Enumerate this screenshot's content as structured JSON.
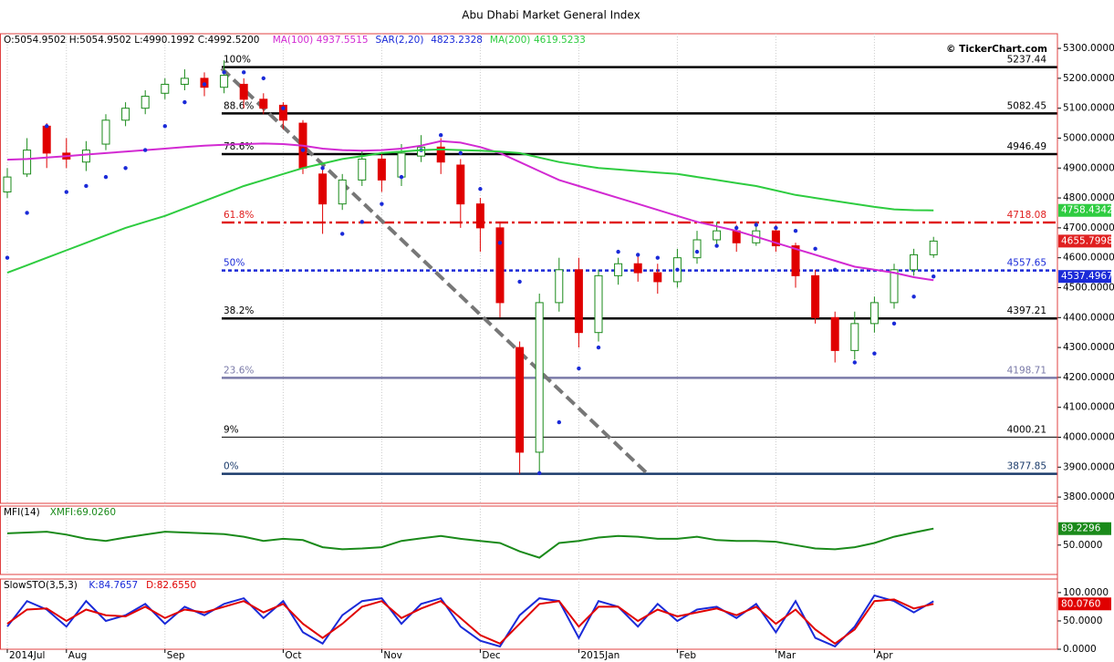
{
  "title": "Abu Dhabi Market General Index",
  "copyright": "© TickerChart.com",
  "chart_data": [
    {
      "type": "candlestick",
      "header": "O:5054.9502 H:5054.9502 L:4990.1992 C:4992.5200",
      "categories": [
        "2014Jul",
        null,
        null,
        "Aug",
        null,
        null,
        null,
        null,
        "Sep",
        null,
        null,
        null,
        null,
        null,
        "Oct",
        null,
        null,
        null,
        null,
        "Nov",
        null,
        null,
        null,
        null,
        "Dec",
        null,
        null,
        null,
        null,
        "2015Jan",
        null,
        null,
        null,
        null,
        "Feb",
        null,
        null,
        null,
        null,
        "Mar",
        null,
        null,
        null,
        null,
        "Apr",
        null,
        null,
        null
      ],
      "open": [
        4820,
        4880,
        5040,
        4950,
        4920,
        4980,
        5060,
        5100,
        5150,
        5180,
        5200,
        5170,
        5180,
        5130,
        5110,
        5050,
        4880,
        4780,
        4860,
        4930,
        4870,
        4940,
        4970,
        4910,
        4780,
        4700,
        4300,
        3950,
        4450,
        4560,
        4350,
        4540,
        4580,
        4550,
        4520,
        4600,
        4660,
        4690,
        4650,
        4690,
        4640,
        4540,
        4400,
        4290,
        4380,
        4450,
        4560,
        4610
      ],
      "high": [
        4900,
        5000,
        5050,
        5000,
        4990,
        5080,
        5120,
        5160,
        5200,
        5230,
        5220,
        5260,
        5200,
        5150,
        5120,
        5060,
        4900,
        4880,
        4960,
        4950,
        4980,
        5010,
        5000,
        4930,
        4800,
        4720,
        4320,
        4480,
        4600,
        4600,
        4560,
        4600,
        4610,
        4580,
        4630,
        4690,
        4720,
        4710,
        4720,
        4710,
        4650,
        4560,
        4420,
        4420,
        4470,
        4580,
        4630,
        4670
      ],
      "low": [
        4800,
        4870,
        4900,
        4900,
        4890,
        4960,
        5040,
        5080,
        5130,
        5160,
        5140,
        5150,
        5100,
        5080,
        5030,
        4880,
        4680,
        4760,
        4840,
        4820,
        4840,
        4920,
        4880,
        4700,
        4620,
        4400,
        3877,
        3880,
        4420,
        4300,
        4320,
        4510,
        4520,
        4480,
        4500,
        4580,
        4640,
        4620,
        4640,
        4620,
        4500,
        4380,
        4250,
        4260,
        4350,
        4430,
        4540,
        4600
      ],
      "close": [
        4870,
        4960,
        4950,
        4930,
        4960,
        5060,
        5100,
        5140,
        5180,
        5200,
        5170,
        5210,
        5130,
        5100,
        5060,
        4900,
        4780,
        4860,
        4930,
        4860,
        4950,
        4970,
        4920,
        4780,
        4700,
        4450,
        3950,
        4450,
        4560,
        4350,
        4540,
        4580,
        4550,
        4520,
        4600,
        4660,
        4690,
        4650,
        4690,
        4640,
        4540,
        4400,
        4290,
        4380,
        4450,
        4560,
        4610,
        4655.7998
      ],
      "up_color": "#1a8a1a",
      "down_color": "#e00000",
      "close_tag_color": "#e02020",
      "series": [
        {
          "name": "MA(100)",
          "legend_value": "4937.5515",
          "color": "#d22ad2",
          "style": "line",
          "values": [
            4928,
            4930,
            4935,
            4940,
            4945,
            4950,
            4955,
            4960,
            4965,
            4970,
            4975,
            4978,
            4980,
            4982,
            4980,
            4975,
            4965,
            4960,
            4958,
            4960,
            4965,
            4975,
            4990,
            4985,
            4970,
            4950,
            4920,
            4890,
            4860,
            4840,
            4820,
            4800,
            4780,
            4760,
            4740,
            4720,
            4705,
            4690,
            4670,
            4650,
            4630,
            4610,
            4590,
            4570,
            4560,
            4550,
            4535,
            4525
          ]
        },
        {
          "name": "SAR(2,20)",
          "legend_value": "4823.2328",
          "color": "#1a2ad8",
          "style": "dots",
          "tag": true,
          "values": [
            4600,
            4750,
            5040,
            4820,
            4840,
            4870,
            4900,
            4960,
            5040,
            5120,
            5180,
            5220,
            5220,
            5200,
            5100,
            4960,
            4900,
            4680,
            4720,
            4780,
            4870,
            4960,
            5010,
            4950,
            4830,
            4650,
            4520,
            3880,
            4050,
            4230,
            4300,
            4620,
            4610,
            4600,
            4560,
            4620,
            4640,
            4700,
            4710,
            4700,
            4690,
            4630,
            4560,
            4250,
            4280,
            4380,
            4470,
            4537.4967
          ]
        },
        {
          "name": "MA(200)",
          "legend_value": "4619.5233",
          "color": "#2ecc40",
          "style": "line",
          "tag": true,
          "values": [
            4550,
            4575,
            4600,
            4625,
            4650,
            4675,
            4700,
            4720,
            4740,
            4765,
            4790,
            4815,
            4840,
            4860,
            4880,
            4900,
            4915,
            4930,
            4940,
            4950,
            4955,
            4960,
            4962,
            4960,
            4958,
            4955,
            4950,
            4935,
            4920,
            4910,
            4900,
            4895,
            4890,
            4885,
            4880,
            4870,
            4860,
            4850,
            4840,
            4825,
            4810,
            4800,
            4790,
            4780,
            4770,
            4762,
            4759,
            4758.4342
          ]
        }
      ],
      "fib": [
        {
          "label": "100%",
          "value": 5237.44,
          "color": "#000000",
          "style": "solid"
        },
        {
          "label": "88.6%",
          "value": 5082.45,
          "color": "#000000",
          "style": "solid"
        },
        {
          "label": "78.6%",
          "value": 4946.49,
          "color": "#000000",
          "style": "solid"
        },
        {
          "label": "61.8%",
          "value": 4718.08,
          "color": "#e02020",
          "style": "dashdot"
        },
        {
          "label": "50%",
          "value": 4557.65,
          "color": "#1a2ad8",
          "style": "dotted"
        },
        {
          "label": "38.2%",
          "value": 4397.21,
          "color": "#000000",
          "style": "solid"
        },
        {
          "label": "23.6%",
          "value": 4198.71,
          "color": "#7a7aa8",
          "style": "solid"
        },
        {
          "label": "9%",
          "value": 4000.21,
          "color": "#000000",
          "style": "thin"
        },
        {
          "label": "0%",
          "value": 3877.85,
          "color": "#1a3a6a",
          "style": "solid"
        }
      ],
      "ylim": [
        3779,
        5349
      ],
      "yticks": [
        {
          "value": 5300,
          "label": "5300.0000"
        },
        {
          "value": 5200,
          "label": "5200.0000"
        },
        {
          "value": 5100,
          "label": "5100.0000"
        },
        {
          "value": 5000,
          "label": "5000.0000"
        },
        {
          "value": 4900,
          "label": "4900.0000"
        },
        {
          "value": 4800,
          "label": "4800.0000"
        },
        {
          "value": 4700,
          "label": "4700.0000"
        },
        {
          "value": 4600,
          "label": "4600.0000"
        },
        {
          "value": 4500,
          "label": "4500.0000"
        },
        {
          "value": 4400,
          "label": "4400.0000"
        },
        {
          "value": 4300,
          "label": "4300.0000"
        },
        {
          "value": 4200,
          "label": "4200.0000"
        },
        {
          "value": 4100,
          "label": "4100.0000"
        },
        {
          "value": 4000,
          "label": "4000.0000"
        },
        {
          "value": 3900,
          "label": "3900.0000"
        },
        {
          "value": 3800,
          "label": "3800.0000"
        }
      ]
    },
    {
      "type": "line",
      "header": "MFI(14)",
      "ylim": [
        -20,
        143
      ],
      "yticks": [
        {
          "value": 50,
          "label": "50.0000"
        }
      ],
      "series": [
        {
          "name": "XMFI:69.0260",
          "color": "#1a8a1a",
          "tag": true,
          "values": [
            78,
            80,
            82,
            75,
            65,
            60,
            68,
            75,
            82,
            80,
            78,
            76,
            70,
            60,
            65,
            62,
            45,
            40,
            42,
            45,
            60,
            66,
            72,
            65,
            60,
            55,
            35,
            20,
            55,
            60,
            68,
            72,
            70,
            65,
            65,
            70,
            62,
            60,
            60,
            58,
            50,
            42,
            40,
            45,
            55,
            70,
            80,
            89.2296
          ]
        }
      ]
    },
    {
      "type": "line",
      "header": "SlowSTO(3,5,3)",
      "ylim": [
        0,
        124
      ],
      "yticks": [
        {
          "value": 100,
          "label": "100.0000"
        },
        {
          "value": 50,
          "label": "50.0000"
        },
        {
          "value": 0,
          "label": "0.0000"
        }
      ],
      "series": [
        {
          "name": "K:84.7657",
          "color": "#1a2ad8",
          "values": [
            40,
            85,
            70,
            40,
            85,
            50,
            60,
            80,
            45,
            75,
            60,
            80,
            90,
            55,
            85,
            30,
            10,
            60,
            85,
            90,
            45,
            80,
            90,
            40,
            15,
            5,
            60,
            90,
            85,
            20,
            85,
            75,
            40,
            80,
            50,
            70,
            75,
            55,
            80,
            30,
            85,
            20,
            5,
            40,
            95,
            85,
            65,
            84.7657
          ]
        },
        {
          "name": "D:82.6550",
          "color": "#e00000",
          "tag": true,
          "last_label": "80.0760",
          "values": [
            45,
            70,
            72,
            50,
            70,
            60,
            58,
            75,
            55,
            70,
            65,
            75,
            85,
            65,
            80,
            45,
            20,
            45,
            75,
            85,
            55,
            72,
            85,
            55,
            25,
            10,
            45,
            80,
            85,
            40,
            75,
            75,
            50,
            70,
            58,
            65,
            72,
            60,
            75,
            45,
            70,
            35,
            10,
            35,
            85,
            88,
            72,
            80.076
          ]
        }
      ]
    }
  ]
}
